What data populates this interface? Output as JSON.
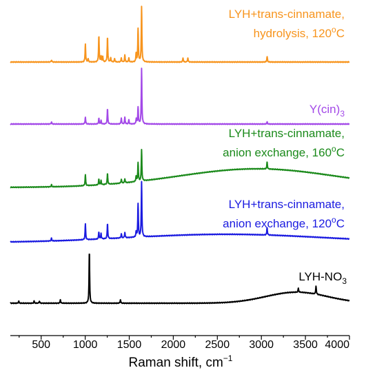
{
  "chart_data": {
    "type": "line",
    "title": "",
    "xlabel": "Raman shift, cm",
    "xlabel_sup": "−1",
    "ylabel": "",
    "xlim": [
      150,
      4000
    ],
    "xticks": [
      500,
      1000,
      1500,
      2000,
      2500,
      3000,
      3500,
      4000
    ],
    "y_axis_shown": false,
    "grid": false,
    "series": [
      {
        "key": "s1",
        "color": "#f7941d",
        "label_line1": "LYH+trans-cinnamate,",
        "label_line2_main": "hydrolysis, 120",
        "label_line2_sup": "o",
        "label_line2_tail": "C",
        "baseline": 0.0,
        "slope": 0.0,
        "peaks": [
          [
            617,
            3
          ],
          [
            1002,
            26
          ],
          [
            1033,
            5
          ],
          [
            1155,
            38
          ],
          [
            1180,
            8
          ],
          [
            1199,
            8
          ],
          [
            1253,
            36
          ],
          [
            1290,
            6
          ],
          [
            1334,
            5
          ],
          [
            1410,
            6
          ],
          [
            1450,
            10
          ],
          [
            1495,
            6
          ],
          [
            1578,
            12
          ],
          [
            1600,
            48
          ],
          [
            1640,
            80
          ],
          [
            2110,
            6
          ],
          [
            2165,
            6
          ],
          [
            3065,
            8
          ]
        ]
      },
      {
        "key": "s2",
        "color": "#a349e8",
        "label_line1": "Y(cin)",
        "label_sub": "3",
        "baseline": 0.0,
        "slope": 0.0,
        "peaks": [
          [
            617,
            3
          ],
          [
            1002,
            10
          ],
          [
            1155,
            8
          ],
          [
            1180,
            5
          ],
          [
            1253,
            22
          ],
          [
            1410,
            9
          ],
          [
            1450,
            10
          ],
          [
            1495,
            6
          ],
          [
            1580,
            8
          ],
          [
            1600,
            24
          ],
          [
            1640,
            80
          ],
          [
            3065,
            3
          ]
        ]
      },
      {
        "key": "s3",
        "color": "#1b8a1b",
        "label_line1": "LYH+trans-cinnamate,",
        "label_line2_main": "anion exchange, 160",
        "label_line2_sup": "o",
        "label_line2_tail": "C",
        "baseline": 0.0,
        "slope": 0.0,
        "hump": [
          2950,
          900,
          27
        ],
        "peaks": [
          [
            617,
            3
          ],
          [
            1002,
            16
          ],
          [
            1155,
            8
          ],
          [
            1180,
            6
          ],
          [
            1253,
            16
          ],
          [
            1410,
            6
          ],
          [
            1450,
            6
          ],
          [
            1578,
            8
          ],
          [
            1600,
            27
          ],
          [
            1640,
            45
          ],
          [
            3065,
            10
          ]
        ]
      },
      {
        "key": "s4",
        "color": "#1b1be0",
        "label_line1": "LYH+trans-cinnamate,",
        "label_line2_main": "anion exchange, 120",
        "label_line2_sup": "o",
        "label_line2_tail": "C",
        "baseline": 0.0,
        "slope": 0.0,
        "hump": [
          2600,
          1100,
          12
        ],
        "peaks": [
          [
            617,
            4
          ],
          [
            1002,
            23
          ],
          [
            1155,
            10
          ],
          [
            1180,
            8
          ],
          [
            1253,
            22
          ],
          [
            1410,
            6
          ],
          [
            1450,
            8
          ],
          [
            1578,
            8
          ],
          [
            1600,
            48
          ],
          [
            1640,
            80
          ],
          [
            3065,
            11
          ]
        ]
      },
      {
        "key": "s5",
        "color": "#000000",
        "label_line1": "LYH-NO",
        "label_sub": "3",
        "baseline": 0.0,
        "slope": 0.0,
        "hump": [
          3400,
          350,
          16
        ],
        "peaks": [
          [
            245,
            3
          ],
          [
            420,
            3
          ],
          [
            480,
            3
          ],
          [
            718,
            5
          ],
          [
            1047,
            75
          ],
          [
            1400,
            5
          ],
          [
            3420,
            6
          ],
          [
            3620,
            12
          ]
        ]
      }
    ]
  }
}
